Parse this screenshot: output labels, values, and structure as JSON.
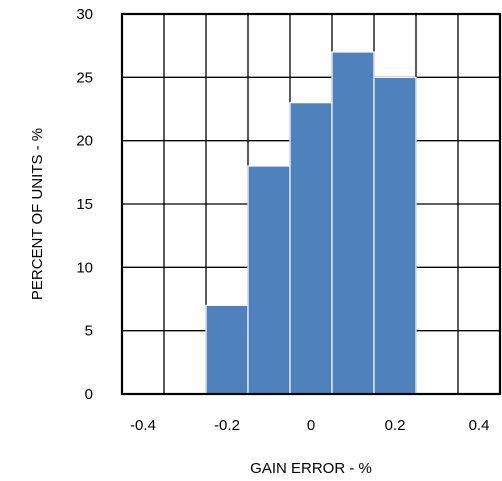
{
  "chart_data": {
    "type": "bar",
    "x_bin_centers": [
      -0.4,
      -0.3,
      -0.2,
      -0.1,
      0.0,
      0.1,
      0.2,
      0.3,
      0.4
    ],
    "bars": [
      {
        "x_start": -0.25,
        "x_end": -0.15,
        "value": 7
      },
      {
        "x_start": -0.15,
        "x_end": -0.05,
        "value": 18
      },
      {
        "x_start": -0.05,
        "x_end": 0.05,
        "value": 23
      },
      {
        "x_start": 0.05,
        "x_end": 0.15,
        "value": 27
      },
      {
        "x_start": 0.15,
        "x_end": 0.25,
        "value": 25
      }
    ],
    "xlabel": "GAIN ERROR - %",
    "ylabel": "PERCENT OF UNITS - %",
    "xlim": [
      -0.45,
      0.45
    ],
    "ylim": [
      0,
      30
    ],
    "x_tick_labels": [
      "-0.4",
      "-0.2",
      "0",
      "0.2",
      "0.4"
    ],
    "x_tick_values": [
      -0.4,
      -0.2,
      0,
      0.2,
      0.4
    ],
    "y_tick_labels": [
      "0",
      "5",
      "10",
      "15",
      "20",
      "25",
      "30"
    ],
    "y_tick_values": [
      0,
      5,
      10,
      15,
      20,
      25,
      30
    ],
    "x_grid_values": [
      -0.35,
      -0.25,
      -0.15,
      -0.05,
      0.05,
      0.15,
      0.25,
      0.35
    ],
    "y_grid_values": [
      5,
      10,
      15,
      20,
      25
    ],
    "grid": true,
    "bar_color": "#4f81bd"
  }
}
